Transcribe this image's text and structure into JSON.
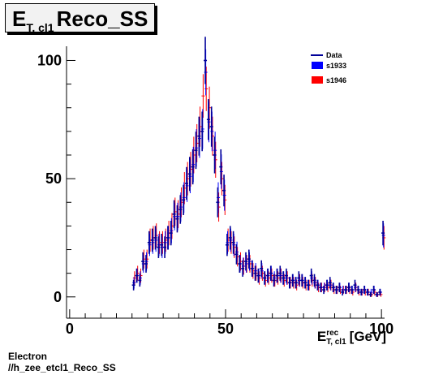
{
  "title": {
    "main": "E",
    "sub": "T, cl1",
    "rest": "Reco_SS"
  },
  "xlabel": {
    "main": "E",
    "sup": "rec",
    "sub": "T, cl1",
    "unit": "[GeV]"
  },
  "footer": {
    "line1": "Electron",
    "line2": "//h_zee_etcl1_Reco_SS"
  },
  "colors": {
    "data": "#000099",
    "s1933": "#0000ff",
    "s1946": "#ff0000"
  },
  "chart_data": {
    "type": "scatter",
    "xlim": [
      -1,
      101
    ],
    "ylim": [
      -9,
      106
    ],
    "xticks": [
      0,
      50,
      100
    ],
    "yticks": [
      0,
      50,
      100
    ],
    "xtick_labels": [
      "0",
      "50",
      "100"
    ],
    "ytick_labels": [
      "0",
      "50",
      "100"
    ],
    "legend": {
      "placement": "top-right",
      "entries": [
        "Data",
        "s1933",
        "s1946"
      ]
    },
    "grid": false,
    "x": [
      20.5,
      21.5,
      22.5,
      23.5,
      24.5,
      25.5,
      26.5,
      27.5,
      28.5,
      29.5,
      30.5,
      31.5,
      32.5,
      33.5,
      34.5,
      35.5,
      36.5,
      37.5,
      38.5,
      39.5,
      40.5,
      41.5,
      42.5,
      43.5,
      44.5,
      45.5,
      46.5,
      47.5,
      48.5,
      49.5,
      50.5,
      51.5,
      52.5,
      53.5,
      54.5,
      55.5,
      56.5,
      57.5,
      58.5,
      59.5,
      60.5,
      61.5,
      62.5,
      63.5,
      64.5,
      65.5,
      66.5,
      67.5,
      68.5,
      69.5,
      70.5,
      71.5,
      72.5,
      73.5,
      74.5,
      75.5,
      76.5,
      77.5,
      78.5,
      79.5,
      80.5,
      81.5,
      82.5,
      83.5,
      84.5,
      85.5,
      86.5,
      87.5,
      88.5,
      89.5,
      90.5,
      91.5,
      92.5,
      93.5,
      94.5,
      95.5,
      96.5,
      97.5,
      98.5,
      99.5,
      100.5
    ],
    "series": [
      {
        "name": "Data",
        "values": [
          5,
          9,
          7,
          15,
          14,
          23,
          24,
          25,
          21,
          22,
          21,
          25,
          27,
          35,
          33,
          37,
          41,
          48,
          52,
          55,
          62,
          68,
          70,
          100,
          75,
          72,
          60,
          40,
          55,
          45,
          22,
          25,
          23,
          18,
          14,
          12,
          15,
          16,
          12,
          10,
          9,
          12,
          8,
          9,
          10,
          7,
          9,
          10,
          8,
          9,
          6,
          7,
          6,
          8,
          7,
          6,
          5,
          9,
          7,
          5,
          4,
          3,
          5,
          6,
          4,
          3,
          4,
          2,
          3,
          4,
          3,
          5,
          3,
          2,
          3,
          2,
          1,
          3,
          1,
          2,
          27
        ]
      },
      {
        "name": "s1933",
        "values": [
          6,
          9,
          8,
          14,
          15,
          22,
          23,
          24,
          22,
          21,
          23,
          25,
          28,
          34,
          34,
          38,
          42,
          47,
          51,
          56,
          63,
          67,
          71,
          95,
          74,
          70,
          62,
          42,
          53,
          43,
          23,
          24,
          22,
          19,
          14,
          13,
          14,
          15,
          12,
          11,
          9,
          11,
          8,
          9,
          10,
          8,
          9,
          9,
          8,
          8,
          6,
          7,
          6,
          7,
          7,
          6,
          5,
          8,
          6,
          5,
          4,
          4,
          5,
          5,
          4,
          3,
          4,
          3,
          3,
          4,
          3,
          4,
          3,
          2,
          3,
          2,
          2,
          3,
          1,
          2,
          26
        ]
      },
      {
        "name": "s1946",
        "values": [
          8,
          10,
          9,
          16,
          16,
          24,
          25,
          26,
          23,
          23,
          24,
          27,
          30,
          36,
          35,
          40,
          46,
          50,
          54,
          60,
          65,
          72,
          85,
          88,
          80,
          68,
          58,
          38,
          50,
          41,
          24,
          23,
          21,
          17,
          15,
          13,
          14,
          14,
          11,
          10,
          8,
          10,
          7,
          8,
          9,
          7,
          8,
          9,
          7,
          8,
          6,
          6,
          5,
          7,
          6,
          5,
          5,
          7,
          6,
          4,
          4,
          4,
          4,
          5,
          3,
          3,
          3,
          3,
          3,
          3,
          2,
          4,
          2,
          2,
          2,
          2,
          1,
          2,
          1,
          1,
          25
        ]
      }
    ]
  }
}
